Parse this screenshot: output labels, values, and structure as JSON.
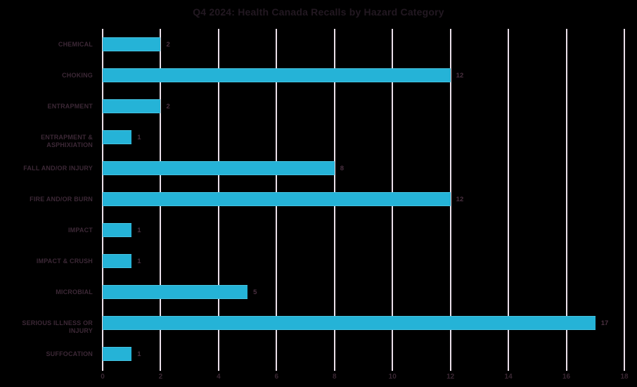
{
  "chart_data": {
    "type": "bar",
    "orientation": "horizontal",
    "title": "Q4 2024: Health Canada Recalls by Hazard Category",
    "categories": [
      "CHEMICAL",
      "CHOKING",
      "ENTRAPMENT",
      "ENTRAPMENT & ASPHIXIATION",
      "FALL AND/OR INJURY",
      "FIRE AND/OR BURN",
      "IMPACT",
      "IMPACT & CRUSH",
      "MICROBIAL",
      "SERIOUS ILLNESS OR INJURY",
      "SUFFOCATION"
    ],
    "values": [
      2,
      12,
      2,
      1,
      8,
      12,
      1,
      1,
      5,
      17,
      1
    ],
    "xlabel": "",
    "ylabel": "",
    "xlim": [
      0,
      18
    ],
    "x_ticks": [
      0,
      2,
      4,
      6,
      8,
      10,
      12,
      14,
      16,
      18
    ],
    "grid": "vertical-only",
    "legend": "none",
    "value_labels": "end-of-bar",
    "colors": {
      "background": "#000000",
      "bar": "#25b3d7",
      "bar_edge_top": "#45c3e0",
      "bar_edge_bottom": "#1ba5c9",
      "gridline": "#eadfe9",
      "title_text": "#221821",
      "category_text": "#3c2836",
      "value_text": "#4a3040",
      "tick_text": "#3a2733"
    }
  }
}
